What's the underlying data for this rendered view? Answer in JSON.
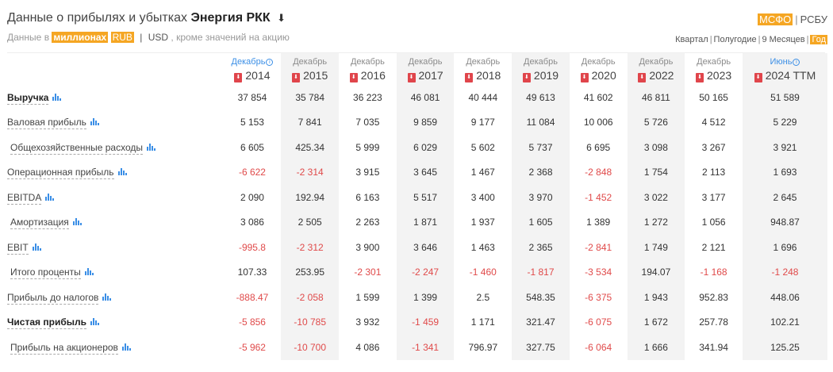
{
  "header": {
    "title_prefix": "Данные о прибылях и убытках",
    "company": "Энергия РКК",
    "download_icon": "⬇"
  },
  "subline": {
    "prefix": "Данные в",
    "unit": "миллионах",
    "currency_rub": "RUB",
    "separator": "|",
    "currency_usd": "USD",
    "suffix": ", кроме значений на акцию"
  },
  "standards": {
    "msfo": "МСФО",
    "separator": "|",
    "rsbu": "РСБУ"
  },
  "periods": {
    "quarter": "Квартал",
    "half": "Полугодие",
    "nine_months": "9 Месяцев",
    "year": "Год",
    "separator": "|"
  },
  "columns": [
    {
      "month": "Декабрь",
      "year": "2014",
      "info": true
    },
    {
      "month": "Декабрь",
      "year": "2015",
      "info": false
    },
    {
      "month": "Декабрь",
      "year": "2016",
      "info": false
    },
    {
      "month": "Декабрь",
      "year": "2017",
      "info": false
    },
    {
      "month": "Декабрь",
      "year": "2018",
      "info": false
    },
    {
      "month": "Декабрь",
      "year": "2019",
      "info": false
    },
    {
      "month": "Декабрь",
      "year": "2020",
      "info": false
    },
    {
      "month": "Декабрь",
      "year": "2022",
      "info": false
    },
    {
      "month": "Декабрь",
      "year": "2023",
      "info": false
    },
    {
      "month": "Июнь",
      "year": "2024 TTM",
      "info": true
    }
  ],
  "rows": [
    {
      "label": "Выручка",
      "bold": true,
      "indent": false,
      "values": [
        "37 854",
        "35 784",
        "36 223",
        "46 081",
        "40 444",
        "49 613",
        "41 602",
        "46 811",
        "50 165",
        "51 589"
      ]
    },
    {
      "label": "Валовая прибыль",
      "bold": false,
      "indent": false,
      "values": [
        "5 153",
        "7 841",
        "7 035",
        "9 859",
        "9 177",
        "11 084",
        "10 006",
        "5 726",
        "4 512",
        "5 229"
      ]
    },
    {
      "label": "Общехозяйственные расходы",
      "bold": false,
      "indent": true,
      "values": [
        "6 605",
        "425.34",
        "5 999",
        "6 029",
        "5 602",
        "5 737",
        "6 695",
        "3 098",
        "3 267",
        "3 921"
      ]
    },
    {
      "label": "Операционная прибыль",
      "bold": false,
      "indent": false,
      "values": [
        "-6 622",
        "-2 314",
        "3 915",
        "3 645",
        "1 467",
        "2 368",
        "-2 848",
        "1 754",
        "2 113",
        "1 693"
      ]
    },
    {
      "label": "EBITDA",
      "bold": false,
      "indent": false,
      "values": [
        "2 090",
        "192.94",
        "6 163",
        "5 517",
        "3 400",
        "3 970",
        "-1 452",
        "3 022",
        "3 177",
        "2 645"
      ]
    },
    {
      "label": "Амортизация",
      "bold": false,
      "indent": true,
      "values": [
        "3 086",
        "2 505",
        "2 263",
        "1 871",
        "1 937",
        "1 605",
        "1 389",
        "1 272",
        "1 056",
        "948.87"
      ]
    },
    {
      "label": "EBIT",
      "bold": false,
      "indent": false,
      "values": [
        "-995.8",
        "-2 312",
        "3 900",
        "3 646",
        "1 463",
        "2 365",
        "-2 841",
        "1 749",
        "2 121",
        "1 696"
      ]
    },
    {
      "label": "Итого проценты",
      "bold": false,
      "indent": true,
      "values": [
        "107.33",
        "253.95",
        "-2 301",
        "-2 247",
        "-1 460",
        "-1 817",
        "-3 534",
        "194.07",
        "-1 168",
        "-1 248"
      ]
    },
    {
      "label": "Прибыль до налогов",
      "bold": false,
      "indent": false,
      "values": [
        "-888.47",
        "-2 058",
        "1 599",
        "1 399",
        "2.5",
        "548.35",
        "-6 375",
        "1 943",
        "952.83",
        "448.06"
      ]
    },
    {
      "label": "Чистая прибыль",
      "bold": true,
      "indent": false,
      "values": [
        "-5 856",
        "-10 785",
        "3 932",
        "-1 459",
        "1 171",
        "321.47",
        "-6 075",
        "1 672",
        "257.78",
        "102.21"
      ]
    },
    {
      "label": "Прибыль на акционеров",
      "bold": false,
      "indent": true,
      "values": [
        "-5 962",
        "-10 700",
        "4 086",
        "-1 341",
        "796.97",
        "327.75",
        "-6 064",
        "1 666",
        "341.94",
        "125.25"
      ]
    }
  ],
  "icons": {
    "pdf": "pdf-icon",
    "chart": "bar-chart-icon",
    "info": "info-icon",
    "download": "download-icon"
  },
  "colors": {
    "accent": "#f5a623",
    "negative": "#e04a4a",
    "link_blue": "#3a8ee6",
    "pdf_red": "#e0454b"
  }
}
